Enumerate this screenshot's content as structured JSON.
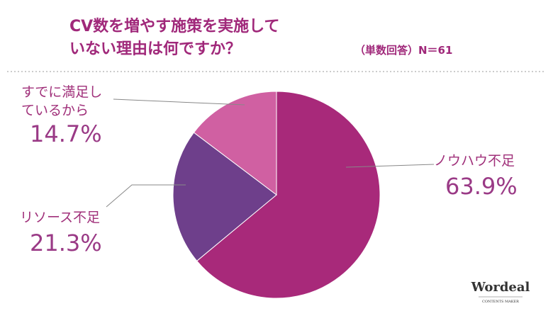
{
  "chart_data": {
    "type": "pie",
    "title": [
      "CV数を増やす施策を実施して",
      "いない理由は何ですか？"
    ],
    "subtitle": "（単数回答）N＝61",
    "categories": [
      "ノウハウ不足",
      "リソース不足",
      "すでに満足しているから"
    ],
    "values": [
      63.9,
      21.3,
      14.7
    ],
    "value_labels": [
      "63.9%",
      "21.3%",
      "14.7%"
    ],
    "colors": [
      "#a8297a",
      "#6e3f8b",
      "#d060a2"
    ]
  },
  "logo": {
    "name": "Wordeal",
    "tagline": "CONTENTS MAKER"
  }
}
